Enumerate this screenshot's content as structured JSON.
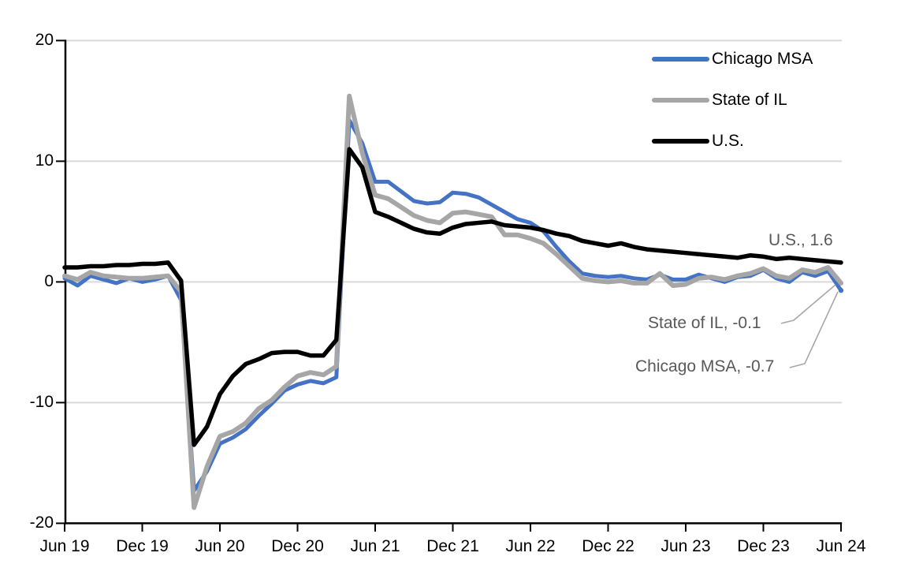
{
  "chart_data": {
    "type": "line",
    "title": "",
    "ylabel": "",
    "xlabel": "",
    "ylim": [
      -20,
      20
    ],
    "grid": "horizontal",
    "legend_position": "top-right",
    "y_ticks": [
      "20",
      "10",
      "0",
      "-10",
      "-20"
    ],
    "x_tick_labels": [
      "Jun 19",
      "Dec 19",
      "Jun 20",
      "Dec 20",
      "Jun 21",
      "Dec 21",
      "Jun 22",
      "Dec 22",
      "Jun 23",
      "Dec 23",
      "Jun 24"
    ],
    "x_tick_indices": [
      0,
      6,
      12,
      18,
      24,
      30,
      36,
      42,
      48,
      54,
      60
    ],
    "x": [
      "Jun 19",
      "Jul 19",
      "Aug 19",
      "Sep 19",
      "Oct 19",
      "Nov 19",
      "Dec 19",
      "Jan 20",
      "Feb 20",
      "Mar 20",
      "Apr 20",
      "May 20",
      "Jun 20",
      "Jul 20",
      "Aug 20",
      "Sep 20",
      "Oct 20",
      "Nov 20",
      "Dec 20",
      "Jan 21",
      "Feb 21",
      "Mar 21",
      "Apr 21",
      "May 21",
      "Jun 21",
      "Jul 21",
      "Aug 21",
      "Sep 21",
      "Oct 21",
      "Nov 21",
      "Dec 21",
      "Jan 22",
      "Feb 22",
      "Mar 22",
      "Apr 22",
      "May 22",
      "Jun 22",
      "Jul 22",
      "Aug 22",
      "Sep 22",
      "Oct 22",
      "Nov 22",
      "Dec 22",
      "Jan 23",
      "Feb 23",
      "Mar 23",
      "Apr 23",
      "May 23",
      "Jun 23",
      "Jul 23",
      "Aug 23",
      "Sep 23",
      "Oct 23",
      "Nov 23",
      "Dec 23",
      "Jan 24",
      "Feb 24",
      "Mar 24",
      "Apr 24",
      "May 24",
      "Jun 24"
    ],
    "series": [
      {
        "name": "Chicago MSA",
        "color": "#4472C4",
        "values": [
          0.3,
          -0.3,
          0.5,
          0.2,
          -0.1,
          0.3,
          0.0,
          0.2,
          0.5,
          -1.5,
          -17.3,
          -15.7,
          -13.4,
          -12.9,
          -12.2,
          -11.1,
          -10.1,
          -9.0,
          -8.5,
          -8.2,
          -8.4,
          -7.9,
          13.4,
          11.5,
          8.3,
          8.3,
          7.5,
          6.7,
          6.5,
          6.6,
          7.4,
          7.3,
          7.0,
          6.4,
          5.8,
          5.2,
          4.9,
          4.2,
          2.9,
          1.7,
          0.7,
          0.5,
          0.4,
          0.5,
          0.3,
          0.2,
          0.6,
          0.2,
          0.2,
          0.6,
          0.3,
          0.0,
          0.4,
          0.5,
          1.0,
          0.3,
          0.0,
          0.8,
          0.5,
          0.9,
          -0.7
        ]
      },
      {
        "name": "State of IL",
        "color": "#A6A6A6",
        "values": [
          0.5,
          0.2,
          0.8,
          0.5,
          0.4,
          0.3,
          0.3,
          0.4,
          0.5,
          -0.8,
          -18.7,
          -15.3,
          -12.8,
          -12.4,
          -11.7,
          -10.5,
          -9.8,
          -8.7,
          -7.8,
          -7.5,
          -7.7,
          -7.0,
          15.4,
          10.7,
          7.2,
          6.9,
          6.2,
          5.5,
          5.1,
          4.9,
          5.7,
          5.8,
          5.6,
          5.4,
          3.9,
          3.9,
          3.6,
          3.2,
          2.3,
          1.3,
          0.3,
          0.1,
          0.0,
          0.1,
          -0.1,
          -0.1,
          0.7,
          -0.3,
          -0.2,
          0.3,
          0.4,
          0.2,
          0.5,
          0.7,
          1.1,
          0.5,
          0.3,
          1.0,
          0.8,
          1.2,
          -0.1
        ]
      },
      {
        "name": "U.S.",
        "color": "#000000",
        "values": [
          1.2,
          1.2,
          1.3,
          1.3,
          1.4,
          1.4,
          1.5,
          1.5,
          1.6,
          0.1,
          -13.5,
          -12.0,
          -9.3,
          -7.8,
          -6.8,
          -6.4,
          -5.9,
          -5.8,
          -5.8,
          -6.1,
          -6.1,
          -4.8,
          11.0,
          9.5,
          5.8,
          5.4,
          4.9,
          4.4,
          4.1,
          4.0,
          4.5,
          4.8,
          4.9,
          5.0,
          4.7,
          4.6,
          4.5,
          4.3,
          4.0,
          3.8,
          3.4,
          3.2,
          3.0,
          3.2,
          2.9,
          2.7,
          2.6,
          2.5,
          2.4,
          2.3,
          2.2,
          2.1,
          2.0,
          2.2,
          2.1,
          1.9,
          2.0,
          1.9,
          1.8,
          1.7,
          1.6
        ]
      }
    ],
    "annotations": [
      {
        "series": "U.S.",
        "value": 1.6,
        "text": "U.S., 1.6"
      },
      {
        "series": "State of IL",
        "value": -0.1,
        "text": "State of IL, -0.1"
      },
      {
        "series": "Chicago MSA",
        "value": -0.7,
        "text": "Chicago MSA, -0.7"
      }
    ],
    "colors": {
      "gridline": "#D9D9D9",
      "axis": "#000000",
      "annotation_text": "#595959",
      "leader_line": "#A6A6A6"
    }
  }
}
